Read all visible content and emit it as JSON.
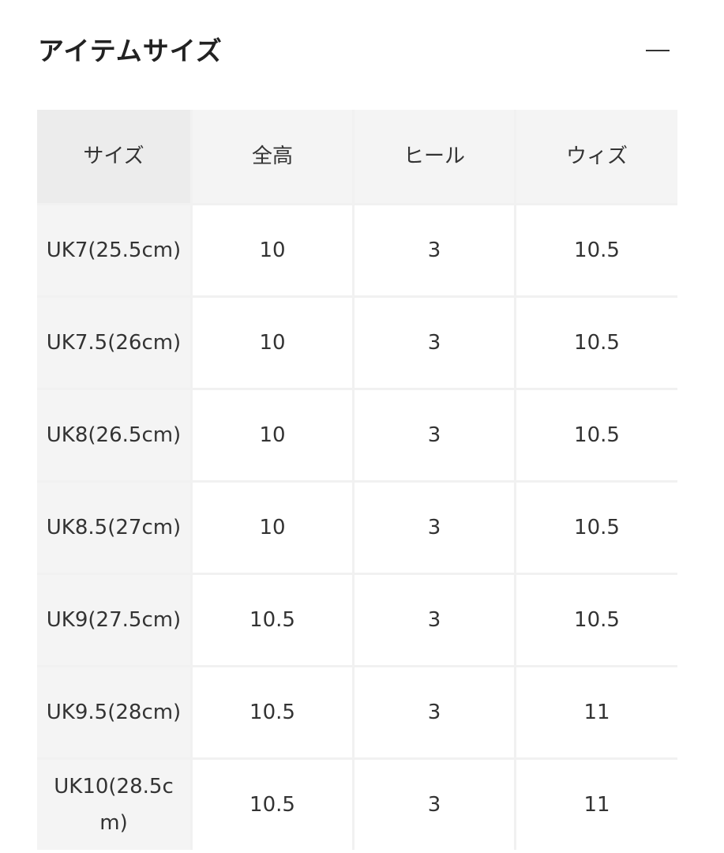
{
  "section": {
    "title": "アイテムサイズ",
    "collapse_icon": "minus-icon"
  },
  "table": {
    "headers": [
      "サイズ",
      "全高",
      "ヒール",
      "ウィズ"
    ],
    "rows": [
      [
        "UK7(25.5cm)",
        "10",
        "3",
        "10.5"
      ],
      [
        "UK7.5(26cm)",
        "10",
        "3",
        "10.5"
      ],
      [
        "UK8(26.5cm)",
        "10",
        "3",
        "10.5"
      ],
      [
        "UK8.5(27cm)",
        "10",
        "3",
        "10.5"
      ],
      [
        "UK9(27.5cm)",
        "10.5",
        "3",
        "10.5"
      ],
      [
        "UK9.5(28cm)",
        "10.5",
        "3",
        "11"
      ],
      [
        "UK10(28.5cm)",
        "10.5",
        "3",
        "11"
      ]
    ]
  }
}
